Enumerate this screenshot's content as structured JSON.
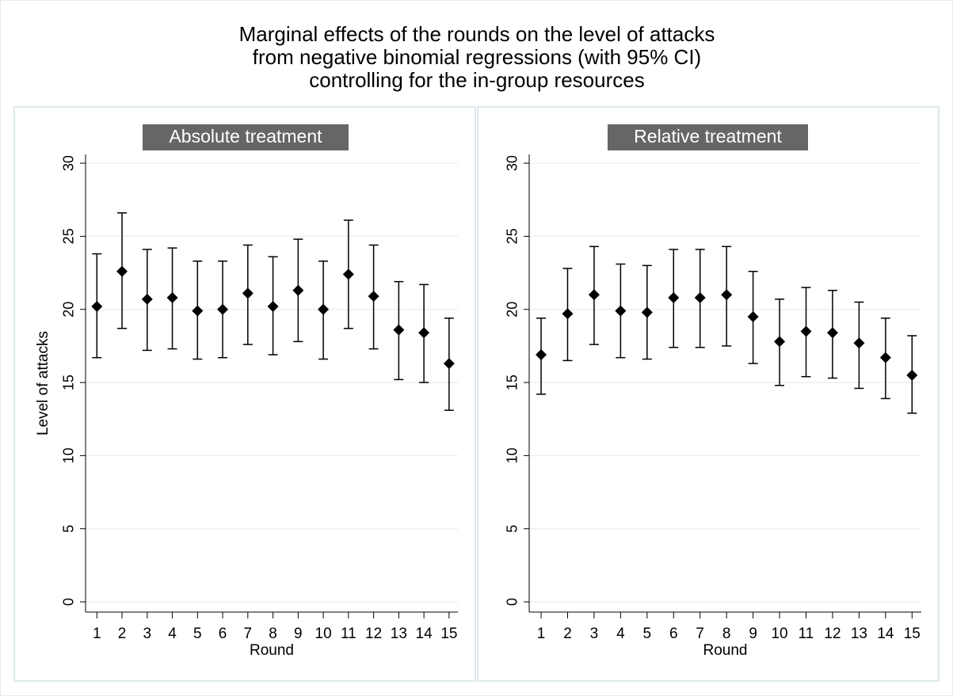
{
  "title": [
    "Marginal effects of the rounds on the level of attacks",
    "from negative binomial regressions (with 95% CI)",
    "controlling for the in-group resources"
  ],
  "chart_data": [
    {
      "type": "errorbar",
      "title": "Absolute treatment",
      "xlabel": "Round",
      "ylabel": "Level of attacks",
      "x": [
        1,
        2,
        3,
        4,
        5,
        6,
        7,
        8,
        9,
        10,
        11,
        12,
        13,
        14,
        15
      ],
      "series": [
        {
          "color": "#000000",
          "values": [
            20.2,
            22.6,
            20.7,
            20.8,
            19.9,
            20.0,
            21.1,
            20.2,
            21.3,
            20.0,
            22.4,
            20.9,
            18.6,
            18.4,
            16.3
          ],
          "lower": [
            16.7,
            18.7,
            17.2,
            17.3,
            16.6,
            16.7,
            17.6,
            16.9,
            17.8,
            16.6,
            18.7,
            17.3,
            15.2,
            15.0,
            13.1
          ],
          "upper": [
            23.8,
            26.6,
            24.1,
            24.2,
            23.3,
            23.3,
            24.4,
            23.6,
            24.8,
            23.3,
            26.1,
            24.4,
            21.9,
            21.7,
            19.4
          ]
        }
      ],
      "xlim": [
        0.55,
        15.35
      ],
      "xticks": [
        1,
        2,
        3,
        4,
        5,
        6,
        7,
        8,
        9,
        10,
        11,
        12,
        13,
        14,
        15
      ],
      "ylim": [
        -0.7,
        30.6
      ],
      "yticks": [
        0,
        5,
        10,
        15,
        20,
        25,
        30
      ],
      "grid": true
    },
    {
      "type": "errorbar",
      "title": "Relative treatment",
      "xlabel": "Round",
      "x": [
        1,
        2,
        3,
        4,
        5,
        6,
        7,
        8,
        9,
        10,
        11,
        12,
        13,
        14,
        15
      ],
      "series": [
        {
          "color": "#000000",
          "values": [
            16.9,
            19.7,
            21.0,
            19.9,
            19.8,
            20.8,
            20.8,
            21.0,
            19.5,
            17.8,
            18.5,
            18.4,
            17.7,
            16.7,
            15.5
          ],
          "lower": [
            14.2,
            16.5,
            17.6,
            16.7,
            16.6,
            17.4,
            17.4,
            17.5,
            16.3,
            14.8,
            15.4,
            15.3,
            14.6,
            13.9,
            12.9
          ],
          "upper": [
            19.4,
            22.8,
            24.3,
            23.1,
            23.0,
            24.1,
            24.1,
            24.3,
            22.6,
            20.7,
            21.5,
            21.3,
            20.5,
            19.4,
            18.2
          ]
        }
      ],
      "xlim": [
        0.55,
        15.35
      ],
      "xticks": [
        1,
        2,
        3,
        4,
        5,
        6,
        7,
        8,
        9,
        10,
        11,
        12,
        13,
        14,
        15
      ],
      "ylim": [
        -0.7,
        30.6
      ],
      "yticks": [
        0,
        5,
        10,
        15,
        20,
        25,
        30
      ],
      "grid": true
    }
  ]
}
